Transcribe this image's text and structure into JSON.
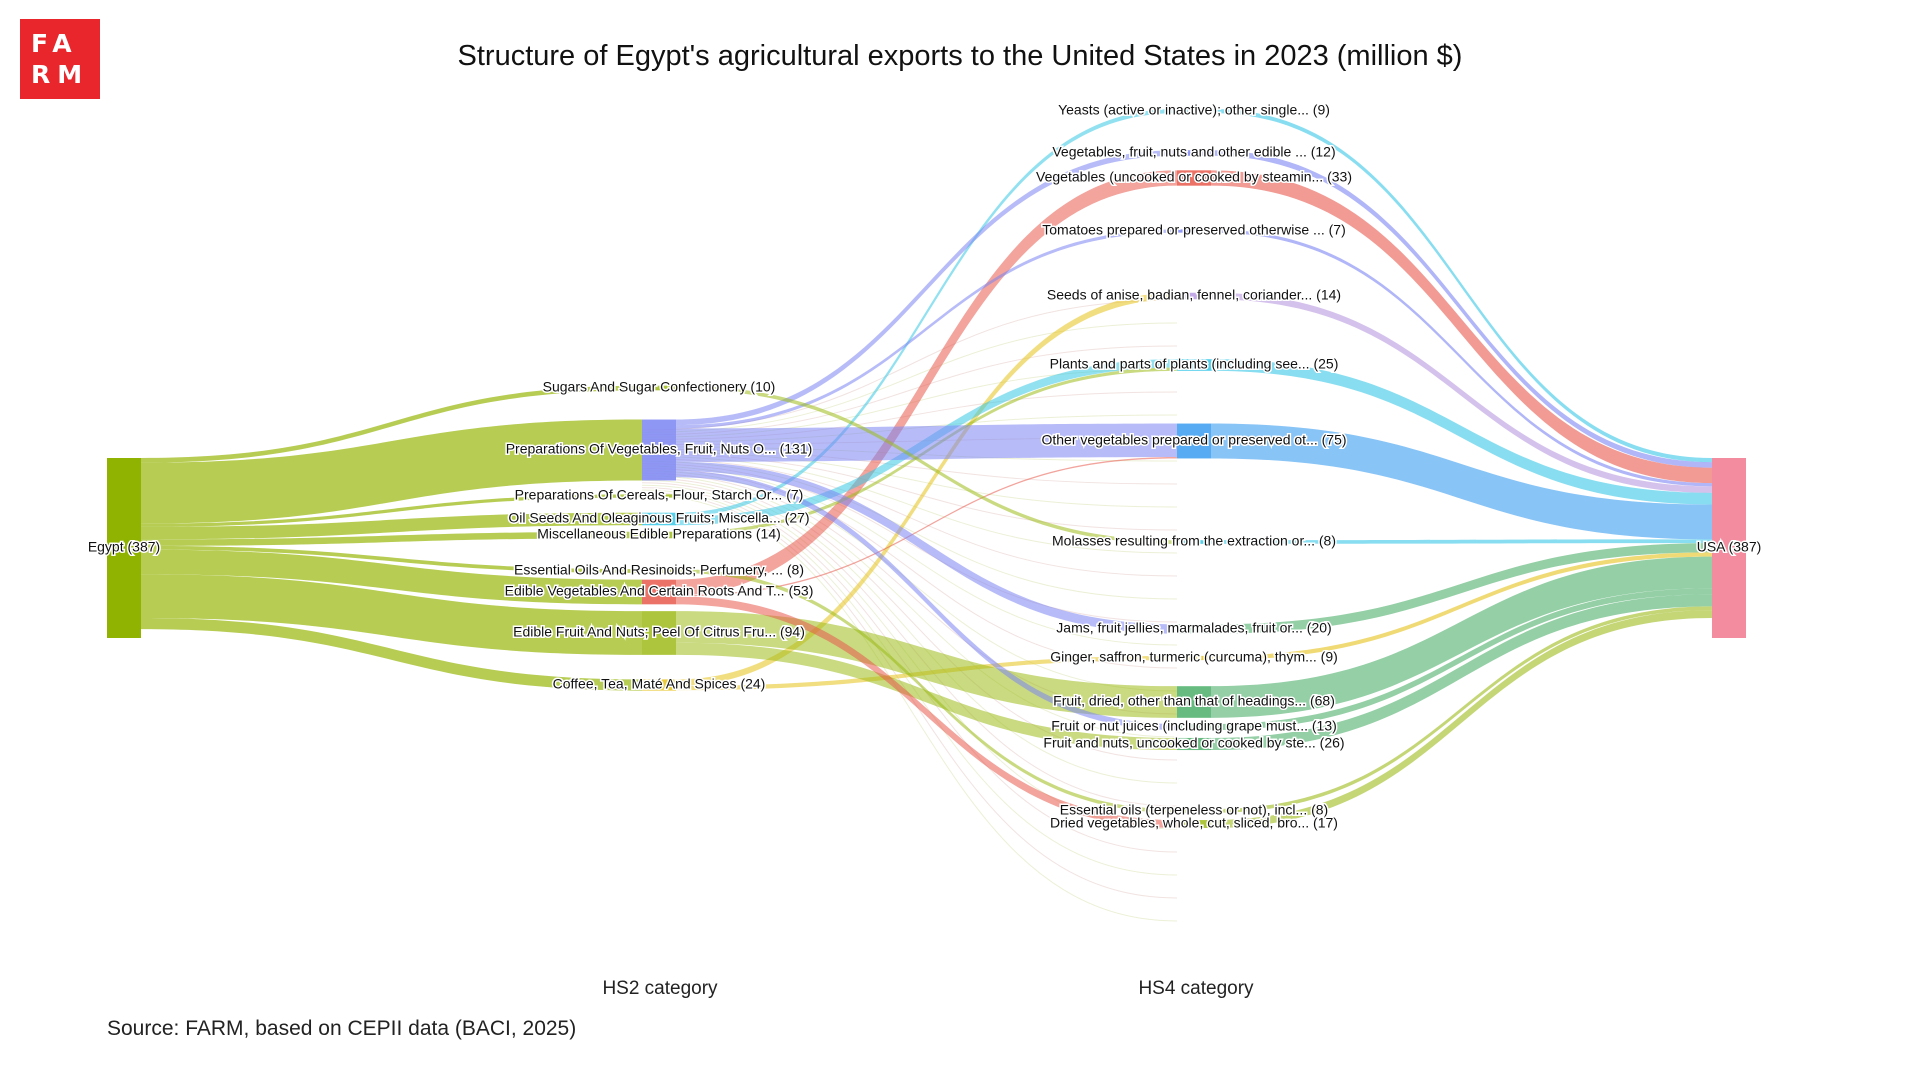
{
  "header": {
    "logo_line1": "FA",
    "logo_line2": "RM",
    "title": "Structure of Egypt's agricultural exports to the United States in 2023 (million $)"
  },
  "footer": {
    "source": "Source: FARM, based on CEPII data (BACI, 2025)"
  },
  "columns": {
    "hs2_label": "HS2 category",
    "hs4_label": "HS4 category"
  },
  "colors": {
    "source_node": "#8fb300",
    "target_node": "#f48ca0",
    "green": "#9dbb1a",
    "blue": "#7b85f2",
    "cyan": "#38c8e6",
    "red": "#e8594c",
    "lavender": "#b99ae0",
    "teal_green": "#4caf6a",
    "sky": "#3a9cf0",
    "yellow": "#e6c21a",
    "pink": "#d89ad0"
  },
  "chart_data": {
    "type": "sankey",
    "title": "Structure of Egypt's agricultural exports to the United States in 2023 (million $)",
    "source": {
      "name": "Egypt",
      "value": 387,
      "label": "Egypt (387)"
    },
    "target": {
      "name": "USA",
      "value": 387,
      "label": "USA (387)"
    },
    "hs2": [
      {
        "name": "Sugars And Sugar Confectionery",
        "value": 10,
        "label": "Sugars And Sugar Confectionery (10)",
        "color": "green"
      },
      {
        "name": "Preparations Of Vegetables, Fruit, Nuts O...",
        "value": 131,
        "label": "Preparations Of Vegetables, Fruit, Nuts O... (131)",
        "color": "blue"
      },
      {
        "name": "Preparations Of Cereals, Flour, Starch Or...",
        "value": 7,
        "label": "Preparations Of Cereals, Flour, Starch Or... (7)",
        "color": "green"
      },
      {
        "name": "Oil Seeds And Oleaginous Fruits; Miscella...",
        "value": 27,
        "label": "Oil Seeds And Oleaginous Fruits; Miscella... (27)",
        "color": "cyan"
      },
      {
        "name": "Miscellaneous Edible Preparations",
        "value": 14,
        "label": "Miscellaneous Edible Preparations (14)",
        "color": "green"
      },
      {
        "name": "Essential Oils And Resinoids; Perfumery, ...",
        "value": 8,
        "label": "Essential Oils And Resinoids; Perfumery, ... (8)",
        "color": "green"
      },
      {
        "name": "Edible Vegetables And Certain Roots And T...",
        "value": 53,
        "label": "Edible Vegetables And Certain Roots And T... (53)",
        "color": "red"
      },
      {
        "name": "Edible Fruit And Nuts; Peel Of Citrus Fru...",
        "value": 94,
        "label": "Edible Fruit And Nuts; Peel Of Citrus Fru... (94)",
        "color": "green"
      },
      {
        "name": "Coffee, Tea, Maté And Spices",
        "value": 24,
        "label": "Coffee, Tea, Maté And Spices (24)",
        "color": "yellow"
      }
    ],
    "hs4": [
      {
        "name": "Yeasts (active or inactive); other single...",
        "value": 9,
        "label": "Yeasts (active or inactive); other single... (9)",
        "color": "cyan"
      },
      {
        "name": "Vegetables, fruit, nuts and other edible ...",
        "value": 12,
        "label": "Vegetables, fruit, nuts and other edible ... (12)",
        "color": "blue"
      },
      {
        "name": "Vegetables (uncooked or cooked by steamin...",
        "value": 33,
        "label": "Vegetables (uncooked or cooked by steamin... (33)",
        "color": "red"
      },
      {
        "name": "Tomatoes prepared or preserved otherwise ...",
        "value": 7,
        "label": "Tomatoes prepared or preserved otherwise ... (7)",
        "color": "blue"
      },
      {
        "name": "Seeds of anise, badian, fennel, coriander...",
        "value": 14,
        "label": "Seeds of anise, badian, fennel, coriander... (14)",
        "color": "lavender"
      },
      {
        "name": "Plants and parts of plants (including see...",
        "value": 25,
        "label": "Plants and parts of plants (including see... (25)",
        "color": "cyan"
      },
      {
        "name": "Other vegetables prepared or preserved ot...",
        "value": 75,
        "label": "Other vegetables prepared or preserved ot... (75)",
        "color": "sky"
      },
      {
        "name": "Molasses resulting from the extraction or...",
        "value": 8,
        "label": "Molasses resulting from the extraction or... (8)",
        "color": "cyan"
      },
      {
        "name": "Jams, fruit jellies, marmalades, fruit or...",
        "value": 20,
        "label": "Jams, fruit jellies, marmalades, fruit or... (20)",
        "color": "teal_green"
      },
      {
        "name": "Ginger, saffron, turmeric (curcuma), thym...",
        "value": 9,
        "label": "Ginger, saffron, turmeric (curcuma), thym... (9)",
        "color": "yellow"
      },
      {
        "name": "Fruit, dried, other than that of headings...",
        "value": 68,
        "label": "Fruit, dried, other than that of headings... (68)",
        "color": "teal_green"
      },
      {
        "name": "Fruit or nut juices (including grape must...",
        "value": 13,
        "label": "Fruit or nut juices (including grape must... (13)",
        "color": "teal_green"
      },
      {
        "name": "Fruit and nuts, uncooked or cooked by ste...",
        "value": 26,
        "label": "Fruit and nuts, uncooked or cooked by ste... (26)",
        "color": "teal_green"
      },
      {
        "name": "Essential oils (terpeneless or not), incl...",
        "value": 8,
        "label": "Essential oils (terpeneless or not), incl... (8)",
        "color": "green"
      },
      {
        "name": "Dried vegetables, whole, cut, sliced, bro...",
        "value": 17,
        "label": "Dried vegetables, whole, cut, sliced, bro... (17)",
        "color": "green"
      }
    ],
    "links": [
      {
        "from": 3,
        "to": 0,
        "value": 9
      },
      {
        "from": 1,
        "to": 1,
        "value": 12
      },
      {
        "from": 6,
        "to": 2,
        "value": 33
      },
      {
        "from": 1,
        "to": 3,
        "value": 7
      },
      {
        "from": 8,
        "to": 4,
        "value": 14
      },
      {
        "from": 3,
        "to": 5,
        "value": 18
      },
      {
        "from": 4,
        "to": 5,
        "value": 7
      },
      {
        "from": 1,
        "to": 6,
        "value": 72
      },
      {
        "from": 6,
        "to": 6,
        "value": 3
      },
      {
        "from": 0,
        "to": 7,
        "value": 8
      },
      {
        "from": 1,
        "to": 8,
        "value": 20
      },
      {
        "from": 8,
        "to": 9,
        "value": 9
      },
      {
        "from": 7,
        "to": 10,
        "value": 68
      },
      {
        "from": 1,
        "to": 11,
        "value": 13
      },
      {
        "from": 7,
        "to": 12,
        "value": 26
      },
      {
        "from": 5,
        "to": 13,
        "value": 8
      },
      {
        "from": 6,
        "to": 14,
        "value": 17
      }
    ]
  }
}
